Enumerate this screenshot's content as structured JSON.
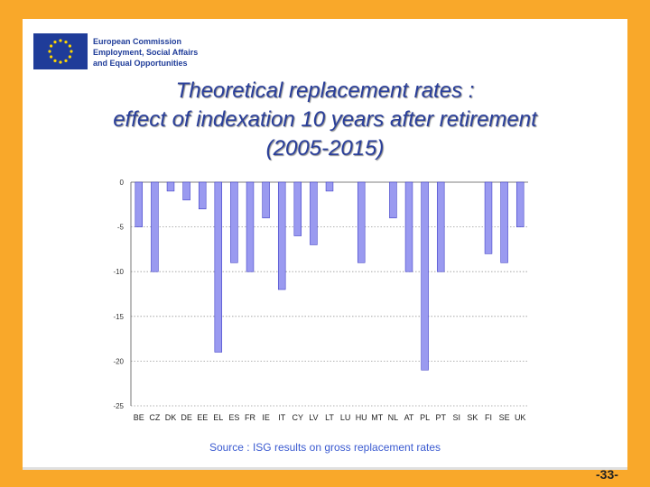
{
  "header": {
    "org_line1": "European Commission",
    "org_line2": "Employment, Social Affairs",
    "org_line3": "and Equal Opportunities",
    "logo_icon": "eu-flag-icon"
  },
  "title_lines": [
    "Theoretical replacement rates :",
    "effect of indexation 10 years after retirement",
    "(2005-2015)"
  ],
  "chart_data": {
    "type": "bar",
    "categories": [
      "BE",
      "CZ",
      "DK",
      "DE",
      "EE",
      "EL",
      "ES",
      "FR",
      "IE",
      "IT",
      "CY",
      "LV",
      "LT",
      "LU",
      "HU",
      "MT",
      "NL",
      "AT",
      "PL",
      "PT",
      "SI",
      "SK",
      "FI",
      "SE",
      "UK"
    ],
    "values": [
      -5,
      -10,
      -1,
      -2,
      -3,
      -19,
      -9,
      -10,
      -4,
      -12,
      -6,
      -7,
      -1,
      0,
      -9,
      0,
      -4,
      -10,
      -21,
      -10,
      0,
      0,
      -8,
      -9,
      -5
    ],
    "ylim": [
      -25,
      0
    ],
    "yticks": [
      0,
      -5,
      -10,
      -15,
      -20,
      -25
    ],
    "grid": true,
    "bar_color": "#9a9af0",
    "bar_edge_color": "#2b2bbf"
  },
  "source": "Source : ISG results on gross replacement rates",
  "page_number": "-33-",
  "colors": {
    "background": "#f9a82a",
    "title": "#2a3f9a",
    "source": "#3a5ad0"
  }
}
